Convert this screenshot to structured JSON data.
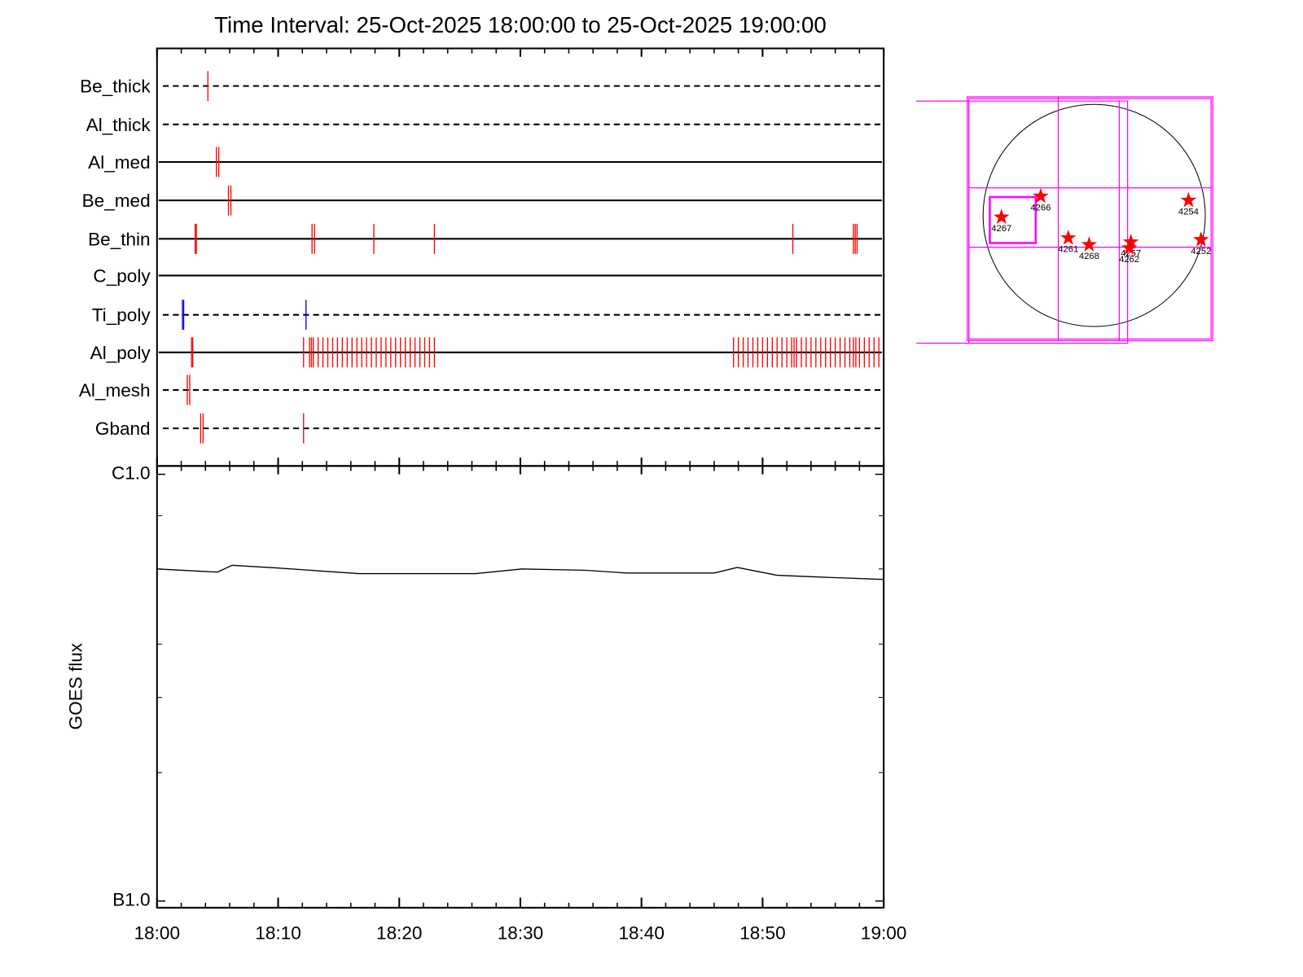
{
  "chart_data": [
    {
      "type": "event",
      "title": "Time Interval: 25-Oct-2025 18:00:00 to 25-Oct-2025 19:00:00",
      "xlim": [
        0,
        60
      ],
      "rows": [
        {
          "name": "Be_thick",
          "style": "dashed",
          "color": "#ff0000",
          "events": [
            4.2
          ]
        },
        {
          "name": "Al_thick",
          "style": "dashed",
          "color": "#ff0000",
          "events": []
        },
        {
          "name": "Al_med",
          "style": "solid",
          "color": "#ff0000",
          "events": [
            4.9,
            5.1
          ]
        },
        {
          "name": "Be_med",
          "style": "solid",
          "color": "#ff0000",
          "events": [
            5.9,
            6.1
          ]
        },
        {
          "name": "Be_thin",
          "style": "solid",
          "color": "#ff0000",
          "events": [
            3.15,
            3.25,
            12.8,
            13.0,
            17.9,
            22.9,
            52.5,
            57.5,
            57.65,
            57.8
          ]
        },
        {
          "name": "C_poly",
          "style": "solid",
          "color": "#ff0000",
          "events": []
        },
        {
          "name": "Ti_poly",
          "style": "dashed",
          "color": "#0000ff",
          "events": [
            2.1,
            2.2,
            12.3
          ]
        },
        {
          "name": "Al_poly",
          "style": "solid",
          "color": "#ff0000",
          "events": [
            2.85,
            2.95,
            12.1,
            12.6,
            12.75,
            12.9,
            13.3,
            13.7,
            14.1,
            14.5,
            14.9,
            15.3,
            15.7,
            16.1,
            16.5,
            16.9,
            17.3,
            17.7,
            18.1,
            18.5,
            18.9,
            19.3,
            19.7,
            20.1,
            20.5,
            20.9,
            21.3,
            21.7,
            22.1,
            22.5,
            22.9,
            47.6,
            48.0,
            48.4,
            48.8,
            49.2,
            49.6,
            50.0,
            50.4,
            50.8,
            51.2,
            51.6,
            52.0,
            52.4,
            52.6,
            52.8,
            53.2,
            53.6,
            54.0,
            54.4,
            54.8,
            55.2,
            55.6,
            56.0,
            56.4,
            56.8,
            57.2,
            57.5,
            57.7,
            58.0,
            58.4,
            58.8,
            59.2,
            59.6
          ]
        },
        {
          "name": "Al_mesh",
          "style": "dashed",
          "color": "#ff0000",
          "events": [
            2.5,
            2.7
          ]
        },
        {
          "name": "Gband",
          "style": "dashed",
          "color": "#ff0000",
          "events": [
            3.6,
            3.8,
            12.1
          ]
        }
      ]
    },
    {
      "type": "line",
      "ylabel": "GOES flux",
      "color": "#000000",
      "x": [
        0,
        5,
        6.2,
        10,
        16.7,
        26.3,
        30.1,
        35.3,
        38.8,
        46,
        47.9,
        51.2,
        55,
        60
      ],
      "values": [
        6e-07,
        5.9e-07,
        6.12e-07,
        6.03e-07,
        5.85e-07,
        5.85e-07,
        6e-07,
        5.96e-07,
        5.87e-07,
        5.87e-07,
        6.05e-07,
        5.8e-07,
        5.74e-07,
        5.67e-07
      ],
      "xlim": [
        0,
        60
      ],
      "xticks": [
        {
          "value": 0,
          "label": "18:00"
        },
        {
          "value": 10,
          "label": "18:10"
        },
        {
          "value": 20,
          "label": "18:20"
        },
        {
          "value": 30,
          "label": "18:30"
        },
        {
          "value": 40,
          "label": "18:40"
        },
        {
          "value": 50,
          "label": "18:50"
        },
        {
          "value": 60,
          "label": "19:00"
        }
      ],
      "xminorticks": [
        2,
        4,
        6,
        8,
        12,
        14,
        16,
        18,
        22,
        24,
        26,
        28,
        32,
        34,
        36,
        38,
        42,
        44,
        46,
        48,
        52,
        54,
        56,
        58
      ],
      "log_y": true,
      "ylim": [
        1e-07,
        1e-06
      ],
      "yticks": [
        {
          "value": 1e-07,
          "label": "B1.0"
        },
        {
          "value": 1e-06,
          "label": "C1.0"
        }
      ],
      "yminorticks": [
        2e-07,
        3e-07,
        4e-07,
        6e-07,
        8e-07
      ]
    },
    {
      "type": "map",
      "xlim": [
        -1500,
        1100
      ],
      "ylim": [
        -1200,
        1200
      ],
      "color": "#ff0000",
      "x": [
        -806,
        -465,
        -225,
        -44,
        319,
        305,
        820,
        929
      ],
      "y": [
        -15,
        167,
        -196,
        -254,
        -232,
        -283,
        131,
        -211
      ],
      "labels": [
        "4267",
        "4266",
        "4261",
        "4268",
        "4257",
        "4262",
        "4254",
        "4252"
      ]
    }
  ]
}
